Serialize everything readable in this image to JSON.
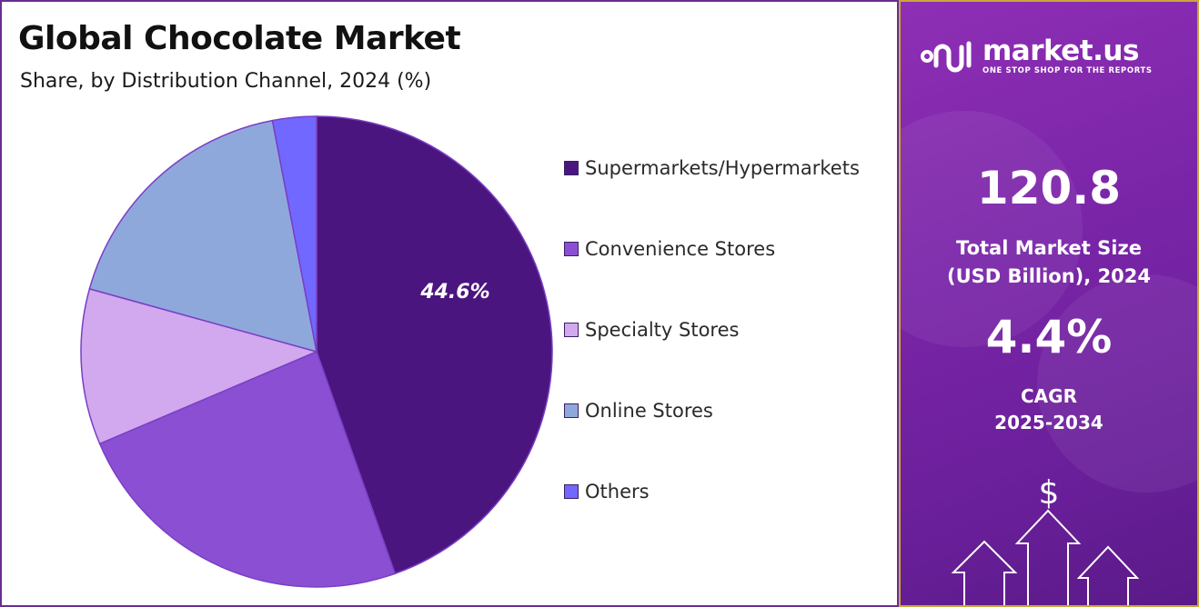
{
  "header": {
    "title": "Global Chocolate Market",
    "subtitle": "Share, by Distribution Channel, 2024 (%)"
  },
  "chart_data": {
    "type": "pie",
    "categories": [
      "Supermarkets/Hypermarkets",
      "Convenience Stores",
      "Specialty Stores",
      "Online Stores",
      "Others"
    ],
    "values": [
      44.6,
      24.0,
      10.7,
      17.7,
      3.0
    ],
    "colors": [
      "#4b1580",
      "#8b4fd3",
      "#d2a8ee",
      "#8fa8dc",
      "#7068ff"
    ],
    "data_labels": [
      "44.6%",
      "",
      "",
      "",
      ""
    ],
    "start": "12 o'clock",
    "direction": "clockwise",
    "legend_position": "right"
  },
  "sidebar": {
    "brand": "market.us",
    "tagline": "ONE STOP SHOP FOR THE REPORTS",
    "market_size_value": "120.8",
    "market_size_label_1": "Total Market Size",
    "market_size_label_2": "(USD Billion), 2024",
    "cagr_value": "4.4%",
    "cagr_label_1": "CAGR",
    "cagr_label_2": "2025-2034",
    "currency_symbol": "$",
    "colors": {
      "background": "#7a25a8",
      "border": "#c9a73a",
      "text": "#ffffff"
    },
    "icons": [
      "market-us-logo-icon",
      "dollar-icon",
      "up-arrow-icon"
    ]
  }
}
